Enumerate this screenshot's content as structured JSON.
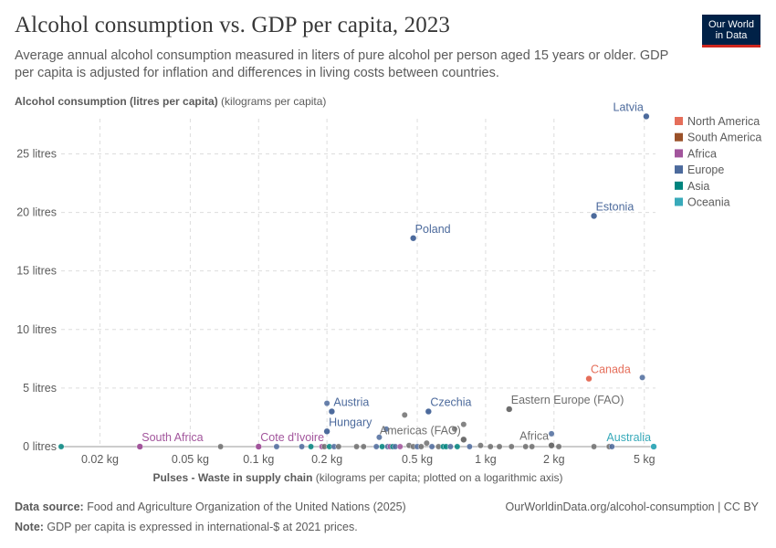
{
  "header": {
    "title": "Alcohol consumption vs. GDP per capita, 2023",
    "subtitle": "Average annual alcohol consumption measured in liters of pure alcohol per person aged 15 years or older. GDP per capita is adjusted for inflation and differences in living costs between countries.",
    "logo_line1": "Our World",
    "logo_line2": "in Data"
  },
  "footer": {
    "source_label": "Data source:",
    "source_text": " Food and Agriculture Organization of the United Nations (2025)",
    "note_label": "Note:",
    "note_text": " GDP per capita is expressed in international-$ at 2021 prices.",
    "url": "OurWorldinData.org/alcohol-consumption | CC BY"
  },
  "chart_data": {
    "type": "scatter",
    "ylabel_bold": "Alcohol consumption (litres per capita)",
    "ylabel_rest": " (kilograms per capita)",
    "xlabel_bold": "Pulses - Waste in supply chain",
    "xlabel_rest": " (kilograms per capita; plotted on a logarithmic axis)",
    "x_scale": "log",
    "xlim": [
      0.0135,
      5.6
    ],
    "ylim": [
      0,
      28
    ],
    "grid": true,
    "x_ticks": [
      {
        "v": 0.02,
        "label": "0.02 kg"
      },
      {
        "v": 0.05,
        "label": "0.05 kg"
      },
      {
        "v": 0.1,
        "label": "0.1 kg"
      },
      {
        "v": 0.2,
        "label": "0.2 kg"
      },
      {
        "v": 0.5,
        "label": "0.5 kg"
      },
      {
        "v": 1,
        "label": "1 kg"
      },
      {
        "v": 2,
        "label": "2 kg"
      },
      {
        "v": 5,
        "label": "5 kg"
      }
    ],
    "y_ticks": [
      {
        "v": 0,
        "label": "0 litres"
      },
      {
        "v": 5,
        "label": "5 litres"
      },
      {
        "v": 10,
        "label": "10 litres"
      },
      {
        "v": 15,
        "label": "15 litres"
      },
      {
        "v": 20,
        "label": "20 litres"
      },
      {
        "v": 25,
        "label": "25 litres"
      }
    ],
    "legend_position": "right",
    "legend": [
      {
        "name": "North America",
        "color": "#e56e5a"
      },
      {
        "name": "South America",
        "color": "#9a5129"
      },
      {
        "name": "Africa",
        "color": "#a2559c"
      },
      {
        "name": "Europe",
        "color": "#4c6a9c"
      },
      {
        "name": "Asia",
        "color": "#00847e"
      },
      {
        "name": "Oceania",
        "color": "#38aaba"
      }
    ],
    "labeled_points": [
      {
        "label": "Latvia",
        "x": 5.1,
        "y": 28.2,
        "color": "#4c6a9c",
        "anchor": "end"
      },
      {
        "label": "Estonia",
        "x": 3.0,
        "y": 19.7,
        "color": "#4c6a9c",
        "anchor": "start"
      },
      {
        "label": "Poland",
        "x": 0.48,
        "y": 17.8,
        "color": "#4c6a9c",
        "anchor": "start"
      },
      {
        "label": "Canada",
        "x": 2.85,
        "y": 5.8,
        "color": "#e56e5a",
        "anchor": "start"
      },
      {
        "label": "Austria",
        "x": 0.21,
        "y": 3.0,
        "color": "#4c6a9c",
        "anchor": "start"
      },
      {
        "label": "Czechia",
        "x": 0.56,
        "y": 3.0,
        "color": "#4c6a9c",
        "anchor": "start"
      },
      {
        "label": "Hungary",
        "x": 0.2,
        "y": 1.3,
        "color": "#4c6a9c",
        "anchor": "start"
      },
      {
        "label": "Eastern Europe (FAO)",
        "x": 1.27,
        "y": 3.2,
        "color": "#6e6e6e",
        "anchor": "start"
      },
      {
        "label": "Americas (FAO)",
        "x": 0.8,
        "y": 0.6,
        "color": "#6e6e6e",
        "anchor": "end"
      },
      {
        "label": "Africa",
        "x": 1.95,
        "y": 0.1,
        "color": "#6e6e6e",
        "anchor": "end"
      },
      {
        "label": "South Africa",
        "x": 0.03,
        "y": 0,
        "color": "#a2559c",
        "anchor": "start"
      },
      {
        "label": "Cote d'Ivoire",
        "x": 0.1,
        "y": 0,
        "color": "#a2559c",
        "anchor": "start"
      },
      {
        "label": "Australia",
        "x": 5.5,
        "y": 0,
        "color": "#38aaba",
        "anchor": "end"
      }
    ],
    "points": [
      {
        "x": 0.0135,
        "y": 0,
        "color": "#00847e"
      },
      {
        "x": 0.068,
        "y": 0,
        "color": "#6e6e6e"
      },
      {
        "x": 0.12,
        "y": 0,
        "color": "#4c6a9c"
      },
      {
        "x": 0.155,
        "y": 0,
        "color": "#4c6a9c"
      },
      {
        "x": 0.17,
        "y": 0,
        "color": "#00847e"
      },
      {
        "x": 0.19,
        "y": 0,
        "color": "#a2559c"
      },
      {
        "x": 0.195,
        "y": 0,
        "color": "#6e6e6e"
      },
      {
        "x": 0.2,
        "y": 3.7,
        "color": "#4c6a9c"
      },
      {
        "x": 0.205,
        "y": 0,
        "color": "#00847e"
      },
      {
        "x": 0.215,
        "y": 0,
        "color": "#4c6a9c"
      },
      {
        "x": 0.225,
        "y": 0,
        "color": "#6e6e6e"
      },
      {
        "x": 0.27,
        "y": 0,
        "color": "#6e6e6e"
      },
      {
        "x": 0.29,
        "y": 0,
        "color": "#6e6e6e"
      },
      {
        "x": 0.33,
        "y": 0,
        "color": "#4c6a9c"
      },
      {
        "x": 0.34,
        "y": 0.8,
        "color": "#4c6a9c"
      },
      {
        "x": 0.35,
        "y": 0,
        "color": "#00847e"
      },
      {
        "x": 0.365,
        "y": 1.5,
        "color": "#4c6a9c"
      },
      {
        "x": 0.37,
        "y": 0,
        "color": "#4c6a9c"
      },
      {
        "x": 0.38,
        "y": 0,
        "color": "#a2559c"
      },
      {
        "x": 0.39,
        "y": 0,
        "color": "#00847e"
      },
      {
        "x": 0.4,
        "y": 0,
        "color": "#4c6a9c"
      },
      {
        "x": 0.42,
        "y": 0,
        "color": "#a2559c"
      },
      {
        "x": 0.44,
        "y": 2.7,
        "color": "#6e6e6e"
      },
      {
        "x": 0.46,
        "y": 0.1,
        "color": "#6e6e6e"
      },
      {
        "x": 0.48,
        "y": 0,
        "color": "#6e6e6e"
      },
      {
        "x": 0.5,
        "y": 0,
        "color": "#4c6a9c"
      },
      {
        "x": 0.52,
        "y": 0,
        "color": "#6e6e6e"
      },
      {
        "x": 0.55,
        "y": 0.3,
        "color": "#6e6e6e"
      },
      {
        "x": 0.58,
        "y": 0,
        "color": "#4c6a9c"
      },
      {
        "x": 0.62,
        "y": 0,
        "color": "#6e6e6e"
      },
      {
        "x": 0.65,
        "y": 0,
        "color": "#00847e"
      },
      {
        "x": 0.67,
        "y": 0,
        "color": "#00847e"
      },
      {
        "x": 0.7,
        "y": 0,
        "color": "#4c6a9c"
      },
      {
        "x": 0.73,
        "y": 1.5,
        "color": "#6e6e6e"
      },
      {
        "x": 0.75,
        "y": 0,
        "color": "#00847e"
      },
      {
        "x": 0.8,
        "y": 1.9,
        "color": "#6e6e6e"
      },
      {
        "x": 0.85,
        "y": 0,
        "color": "#4c6a9c"
      },
      {
        "x": 0.95,
        "y": 0.1,
        "color": "#6e6e6e"
      },
      {
        "x": 1.05,
        "y": 0,
        "color": "#6e6e6e"
      },
      {
        "x": 1.15,
        "y": 0,
        "color": "#6e6e6e"
      },
      {
        "x": 1.3,
        "y": 0,
        "color": "#6e6e6e"
      },
      {
        "x": 1.5,
        "y": 0,
        "color": "#6e6e6e"
      },
      {
        "x": 1.6,
        "y": 0,
        "color": "#6e6e6e"
      },
      {
        "x": 1.95,
        "y": 1.1,
        "color": "#4c6a9c"
      },
      {
        "x": 2.1,
        "y": 0,
        "color": "#6e6e6e"
      },
      {
        "x": 3.0,
        "y": 0,
        "color": "#6e6e6e"
      },
      {
        "x": 3.5,
        "y": 0,
        "color": "#6e6e6e"
      },
      {
        "x": 3.6,
        "y": 0,
        "color": "#4c6a9c"
      },
      {
        "x": 4.9,
        "y": 5.9,
        "color": "#4c6a9c"
      }
    ]
  }
}
